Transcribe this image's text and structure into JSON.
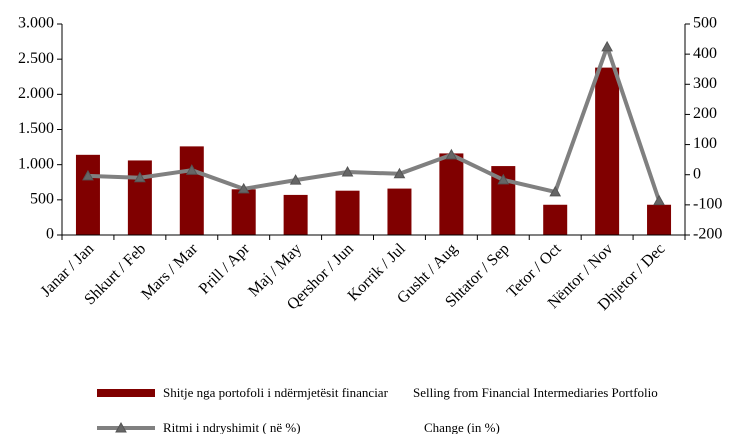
{
  "chart_data": {
    "type": "bar_line",
    "categories": [
      "Janar / Jan",
      "Shkurt  / Feb",
      "Mars  / Mar",
      "Prill / Apr",
      "Maj  / May",
      "Qershor  / Jun",
      "Korrik  / Jul",
      "Gusht  / Aug",
      "Shtator  / Sep",
      "Tetor / Oct",
      "Nëntor / Nov",
      "Dhjetor / Dec"
    ],
    "series": [
      {
        "name": "Shitje nga portofoli i ndërmjetësit  financiar",
        "name_en": "Selling from  Financial Intermediaries Portfolio",
        "type": "bar",
        "color": "#800000",
        "values": [
          1140,
          1060,
          1260,
          650,
          570,
          630,
          660,
          1160,
          980,
          430,
          2380,
          430
        ]
      },
      {
        "name": "Ritmi i ndryshimit ( në %)",
        "name_en": "Change (in %)",
        "type": "line",
        "axis": "y2",
        "color": "#808080",
        "values": [
          -4,
          -10,
          15,
          -47,
          -18,
          9,
          3,
          66,
          -17,
          -57,
          424,
          -86
        ]
      }
    ],
    "ylim": [
      0,
      3000
    ],
    "yticks": [
      0,
      500,
      {
        "value": 1000,
        "label": "1.000"
      },
      {
        "value": 1500,
        "label": "1.500"
      },
      {
        "value": 2000,
        "label": "2.000"
      },
      {
        "value": 2500,
        "label": "2.500"
      },
      {
        "value": 3000,
        "label": "3.000"
      }
    ],
    "y2lim": [
      -200,
      500
    ],
    "y2ticks": [
      -200,
      -100,
      0,
      100,
      200,
      300,
      400,
      500
    ]
  }
}
